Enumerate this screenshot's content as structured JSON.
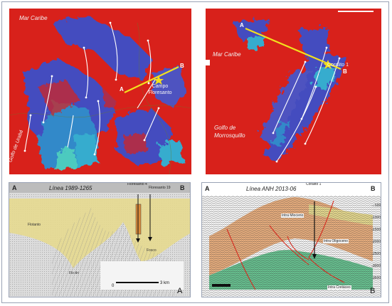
{
  "colors": {
    "map_red": "#d8211b",
    "map_blue": "#3c4fc8",
    "map_cyan": "#2fb4d8",
    "yellow_line": "#f2e01e",
    "seismic_yellow": "#e6d98f",
    "seismic_orange": "#e7ad7d",
    "seismic_green": "#67c08f",
    "fault_red": "#d42a1e",
    "frame": "#9aa3b5"
  },
  "panels": {
    "map_left": {
      "sea_label": "Mar Caribe",
      "gulf_label": "Golfo de Urabá",
      "campo_label": "Campo Floresanto",
      "point_a": "A",
      "point_b": "B"
    },
    "map_right": {
      "sea_label": "Mar Caribe",
      "gulf_label": "Golfo de Morrosquillo",
      "well_label": "Coralito 1",
      "point_a": "A",
      "point_b": "B"
    },
    "section_left": {
      "title": "Línea 1989-1265",
      "left_end": "A",
      "right_end": "B",
      "well_1": "Floresanto 4",
      "well_2": "Floresanto 19",
      "label_flank": "Flotanto",
      "label_core": "Fosco",
      "label_base": "Flo-tin",
      "scale_left": "0",
      "scale_right": "3 km",
      "panel_letter": "A"
    },
    "section_right": {
      "title": "Línea ANH 2013-06",
      "left_end": "A",
      "right_end": "B",
      "well": "Coralito 1",
      "label_1": "Intra Mioceno",
      "label_2": "Intra Oligoceno",
      "label_3": "Intra Cretáceo",
      "panel_letter": "B",
      "depth_ticks": [
        "500",
        "1000",
        "1500",
        "2000",
        "2500",
        "3000",
        "3500"
      ]
    }
  }
}
